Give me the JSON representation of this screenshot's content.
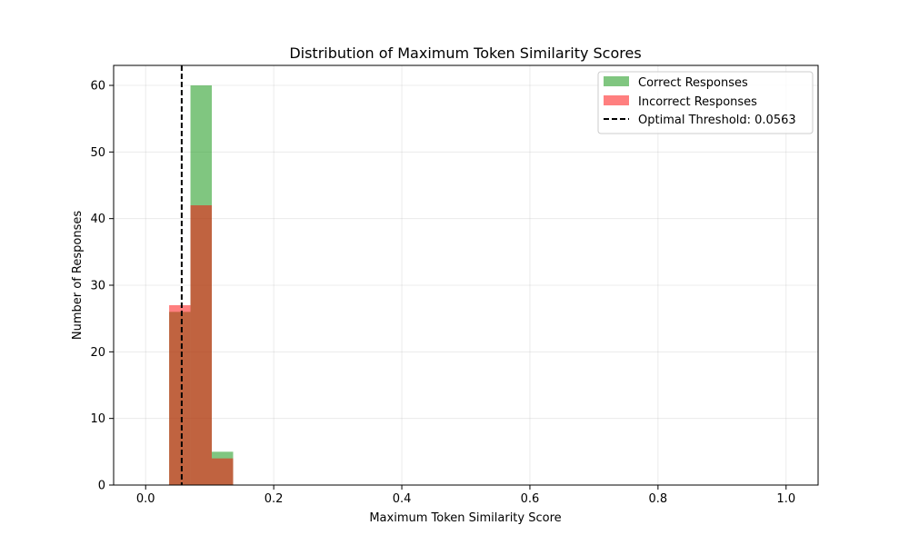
{
  "chart_data": {
    "type": "bar",
    "title": "Distribution of Maximum Token Similarity Scores",
    "xlabel": "Maximum Token Similarity Score",
    "ylabel": "Number of Responses",
    "xlim": [
      -0.05,
      1.05
    ],
    "ylim": [
      0,
      63
    ],
    "xticks": [
      0.0,
      0.2,
      0.4,
      0.6,
      0.8,
      1.0
    ],
    "xtick_labels": [
      "0.0",
      "0.2",
      "0.4",
      "0.6",
      "0.8",
      "1.0"
    ],
    "yticks": [
      0,
      10,
      20,
      30,
      40,
      50,
      60
    ],
    "ytick_labels": [
      "0",
      "10",
      "20",
      "30",
      "40",
      "50",
      "60"
    ],
    "grid": true,
    "legend_position": "top-right",
    "bin_width": 0.0333,
    "series": [
      {
        "name": "Correct Responses",
        "color": "#2ca02c",
        "opacity": 0.6,
        "bins": [
          {
            "start": 0.0367,
            "count": 26
          },
          {
            "start": 0.07,
            "count": 60
          },
          {
            "start": 0.1033,
            "count": 5
          }
        ]
      },
      {
        "name": "Incorrect Responses",
        "color": "#ff0000",
        "opacity": 0.5,
        "bins": [
          {
            "start": 0.0367,
            "count": 27
          },
          {
            "start": 0.07,
            "count": 42
          },
          {
            "start": 0.1033,
            "count": 4
          }
        ]
      }
    ],
    "threshold": {
      "label": "Optimal Threshold: 0.0563",
      "value": 0.0563,
      "color": "#000000",
      "style": "dashed"
    }
  }
}
